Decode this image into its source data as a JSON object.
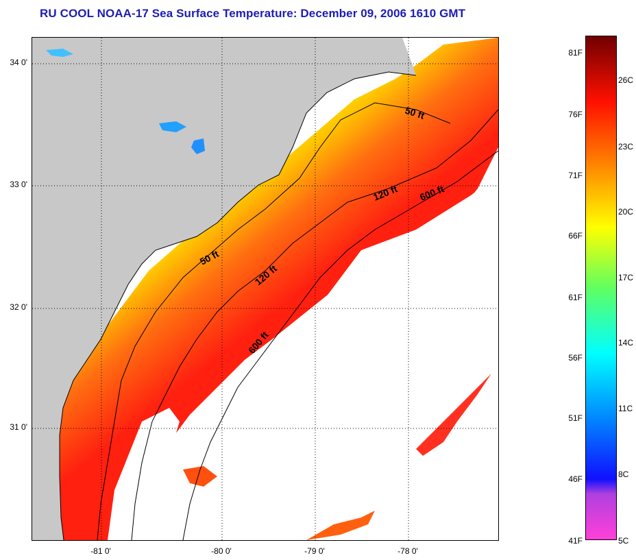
{
  "title": "RU COOL  NOAA-17  Sea Surface Temperature:  December 09, 2006 1610 GMT",
  "map": {
    "lat_ticks": [
      "34 0'",
      "33 0'",
      "32 0'",
      "31 0'"
    ],
    "lon_ticks": [
      "-81 0'",
      "-80 0'",
      "-79 0'",
      "-78 0'"
    ],
    "contours": [
      {
        "label": "50 ft",
        "depth_ft": 50
      },
      {
        "label": "50 ft",
        "depth_ft": 50
      },
      {
        "label": "120 ft",
        "depth_ft": 120
      },
      {
        "label": "120 ft",
        "depth_ft": 120
      },
      {
        "label": "600 ft",
        "depth_ft": 600
      },
      {
        "label": "600 ft",
        "depth_ft": 600
      }
    ],
    "colors": {
      "land": "#c8c8c8",
      "cloud_nodata": "#ffffff",
      "coast": "#000000"
    }
  },
  "colorbar": {
    "f_labels": [
      "81F",
      "76F",
      "71F",
      "66F",
      "61F",
      "56F",
      "51F",
      "46F",
      "41F"
    ],
    "c_labels": [
      "26C",
      "23C",
      "20C",
      "17C",
      "14C",
      "11C",
      "8C",
      "5C"
    ],
    "range_f": [
      41,
      81
    ],
    "stops": [
      "#ff40d8",
      "#9040e0",
      "#2020ff",
      "#00a0ff",
      "#00ffff",
      "#40ff80",
      "#ffff00",
      "#ff8000",
      "#ff0000",
      "#800000"
    ]
  }
}
